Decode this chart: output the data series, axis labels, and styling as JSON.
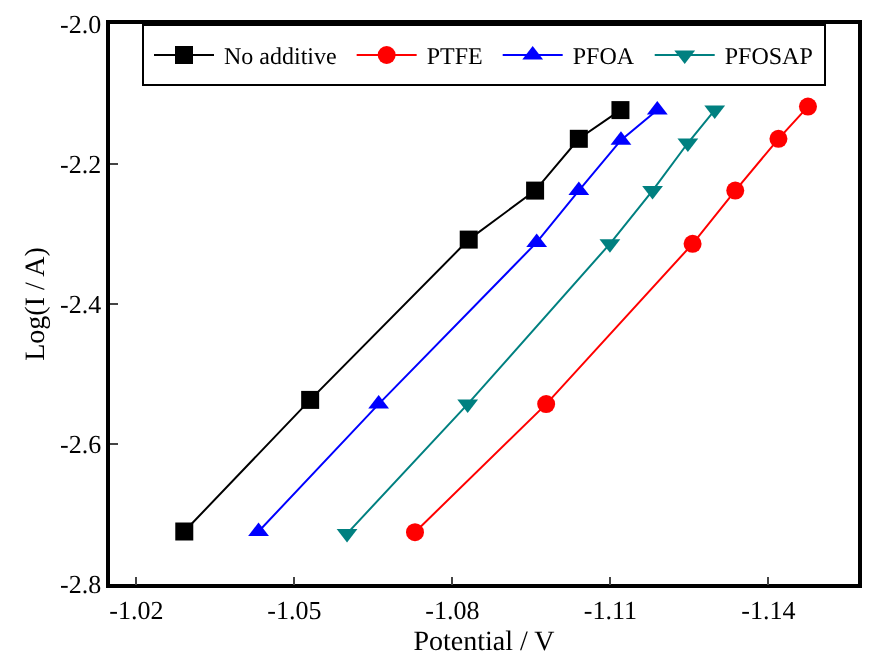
{
  "chart_data": {
    "type": "line",
    "xlabel": "Potential / V",
    "ylabel": "Log(I / A)",
    "xlim": [
      -1.015,
      -1.157
    ],
    "xticks": [
      -1.02,
      -1.05,
      -1.08,
      -1.11,
      -1.14
    ],
    "ylim": [
      -2.8,
      -2.0
    ],
    "yticks": [
      -2.8,
      -2.6,
      -2.4,
      -2.2,
      {
        "value": -2.0,
        "label": "-2.0"
      }
    ],
    "legend": "top",
    "line_style": "solid",
    "series": [
      {
        "name": "No additive",
        "color": "#000000",
        "marker": "square",
        "x": [
          -1.1119,
          -1.104,
          -1.0957,
          -1.0831,
          -1.053,
          -1.0291
        ],
        "values": [
          -2.123,
          -2.164,
          -2.238,
          -2.308,
          -2.537,
          -2.725
        ]
      },
      {
        "name": "PTFE",
        "color": "#ff0000",
        "marker": "circle",
        "x": [
          -1.1475,
          -1.1419,
          -1.1337,
          -1.1256,
          -1.0978,
          -1.0729
        ],
        "values": [
          -2.118,
          -2.164,
          -2.238,
          -2.314,
          -2.543,
          -2.726
        ]
      },
      {
        "name": "PFOA",
        "color": "#0000ff",
        "marker": "triangle",
        "x": [
          -1.1189,
          -1.112,
          -1.104,
          -1.096,
          -1.066,
          -1.0432
        ],
        "values": [
          -2.123,
          -2.166,
          -2.238,
          -2.312,
          -2.543,
          -2.725
        ]
      },
      {
        "name": "PFOSAP",
        "color": "#008080",
        "marker": "triangle-down",
        "x": [
          -1.1298,
          -1.1247,
          -1.118,
          -1.1099,
          -1.0829,
          -1.06
        ],
        "values": [
          -2.123,
          -2.17,
          -2.238,
          -2.314,
          -2.543,
          -2.728
        ]
      }
    ]
  }
}
